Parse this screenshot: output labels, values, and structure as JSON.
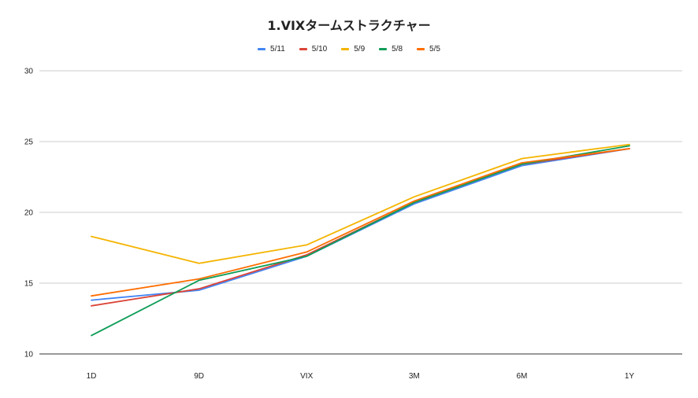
{
  "chart_data": {
    "type": "line",
    "title": "1.VIXタームストラクチャー",
    "categories": [
      "1D",
      "9D",
      "VIX",
      "3M",
      "6M",
      "1Y"
    ],
    "ylim": [
      10,
      30
    ],
    "yticks": [
      10,
      15,
      20,
      25,
      30
    ],
    "grid": true,
    "legend_position": "top",
    "xlabel": "",
    "ylabel": "",
    "series": [
      {
        "name": "5/11",
        "color": "#4285f4",
        "values": [
          13.8,
          14.5,
          16.9,
          20.6,
          23.3,
          24.5
        ]
      },
      {
        "name": "5/10",
        "color": "#db4437",
        "values": [
          13.4,
          14.6,
          17.0,
          20.7,
          23.4,
          24.5
        ]
      },
      {
        "name": "5/9",
        "color": "#f4b400",
        "values": [
          18.3,
          16.4,
          17.7,
          21.1,
          23.8,
          24.8
        ]
      },
      {
        "name": "5/8",
        "color": "#0f9d58",
        "values": [
          11.3,
          15.2,
          16.9,
          20.7,
          23.4,
          24.7
        ]
      },
      {
        "name": "5/5",
        "color": "#ff6d00",
        "values": [
          14.1,
          15.3,
          17.2,
          20.8,
          23.5,
          24.5
        ]
      }
    ]
  }
}
